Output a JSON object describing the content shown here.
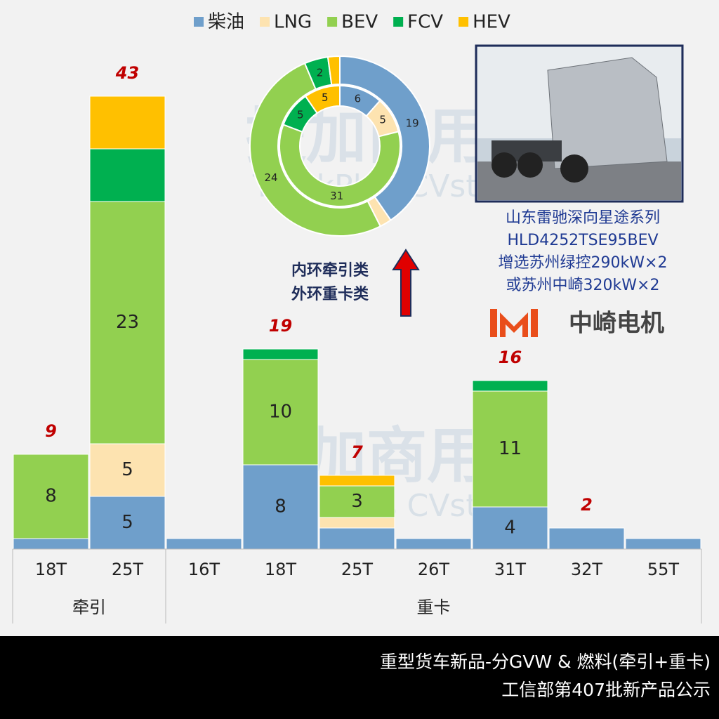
{
  "chart_data": [
    {
      "type": "bar",
      "stacked": true,
      "categories": [
        "18T",
        "25T",
        "16T",
        "18T",
        "25T",
        "26T",
        "31T",
        "32T",
        "55T"
      ],
      "groups": [
        {
          "label": "牵引",
          "count": 2
        },
        {
          "label": "重卡",
          "count": 7
        }
      ],
      "series": [
        {
          "name": "柴油",
          "color": "#6f9fcb",
          "values": [
            1,
            5,
            1,
            8,
            2,
            1,
            4,
            2,
            1
          ],
          "value_labels": [
            null,
            "5",
            null,
            "8",
            null,
            null,
            "4",
            null,
            null
          ]
        },
        {
          "name": "LNG",
          "color": "#fde3b0",
          "values": [
            0,
            5,
            0,
            0,
            1,
            0,
            0,
            0,
            0
          ],
          "value_labels": [
            null,
            "5",
            null,
            null,
            null,
            null,
            null,
            null,
            null
          ]
        },
        {
          "name": "BEV",
          "color": "#92d050",
          "values": [
            8,
            23,
            0,
            10,
            3,
            0,
            11,
            0,
            0
          ],
          "value_labels": [
            "8",
            "23",
            null,
            "10",
            "3",
            null,
            "11",
            null,
            null
          ]
        },
        {
          "name": "FCV",
          "color": "#00b050",
          "values": [
            0,
            5,
            0,
            1,
            0,
            0,
            1,
            0,
            0
          ],
          "value_labels": [
            null,
            null,
            null,
            null,
            null,
            null,
            null,
            null,
            null
          ]
        },
        {
          "name": "HEV",
          "color": "#ffc000",
          "values": [
            0,
            5,
            0,
            0,
            1,
            0,
            0,
            0,
            0
          ],
          "value_labels": [
            null,
            null,
            null,
            null,
            null,
            null,
            null,
            null,
            null
          ]
        }
      ],
      "totals": [
        9,
        43,
        null,
        19,
        7,
        null,
        16,
        2,
        null
      ]
    },
    {
      "type": "pie",
      "donut": true,
      "rings": [
        {
          "name": "牵引",
          "values": [
            6,
            5,
            31,
            5,
            5
          ],
          "value_labels": [
            "6",
            "5",
            "31",
            "5",
            "5"
          ]
        },
        {
          "name": "重卡",
          "values": [
            19,
            1,
            24,
            2,
            1
          ],
          "value_labels": [
            "19",
            null,
            "24",
            "2",
            null
          ]
        }
      ],
      "colors": [
        "#6f9fcb",
        "#fde3b0",
        "#92d050",
        "#00b050",
        "#ffc000"
      ]
    }
  ],
  "annotation": [
    "内环牵引类",
    "外环重卡类"
  ],
  "caption": [
    "山东雷驰深向星途系列",
    "HLD4252TSE95BEV",
    "增选苏州绿控290kW×2",
    "或苏州中崎320kW×2"
  ],
  "logo": "中崎电机",
  "watermark": {
    "cn": "提加商用车",
    "en": "TruckPlus CVstudio"
  },
  "footer": [
    "重型货车新品-分GVW & 燃料(牵引+重卡)",
    "工信部第407批新产品公示"
  ]
}
